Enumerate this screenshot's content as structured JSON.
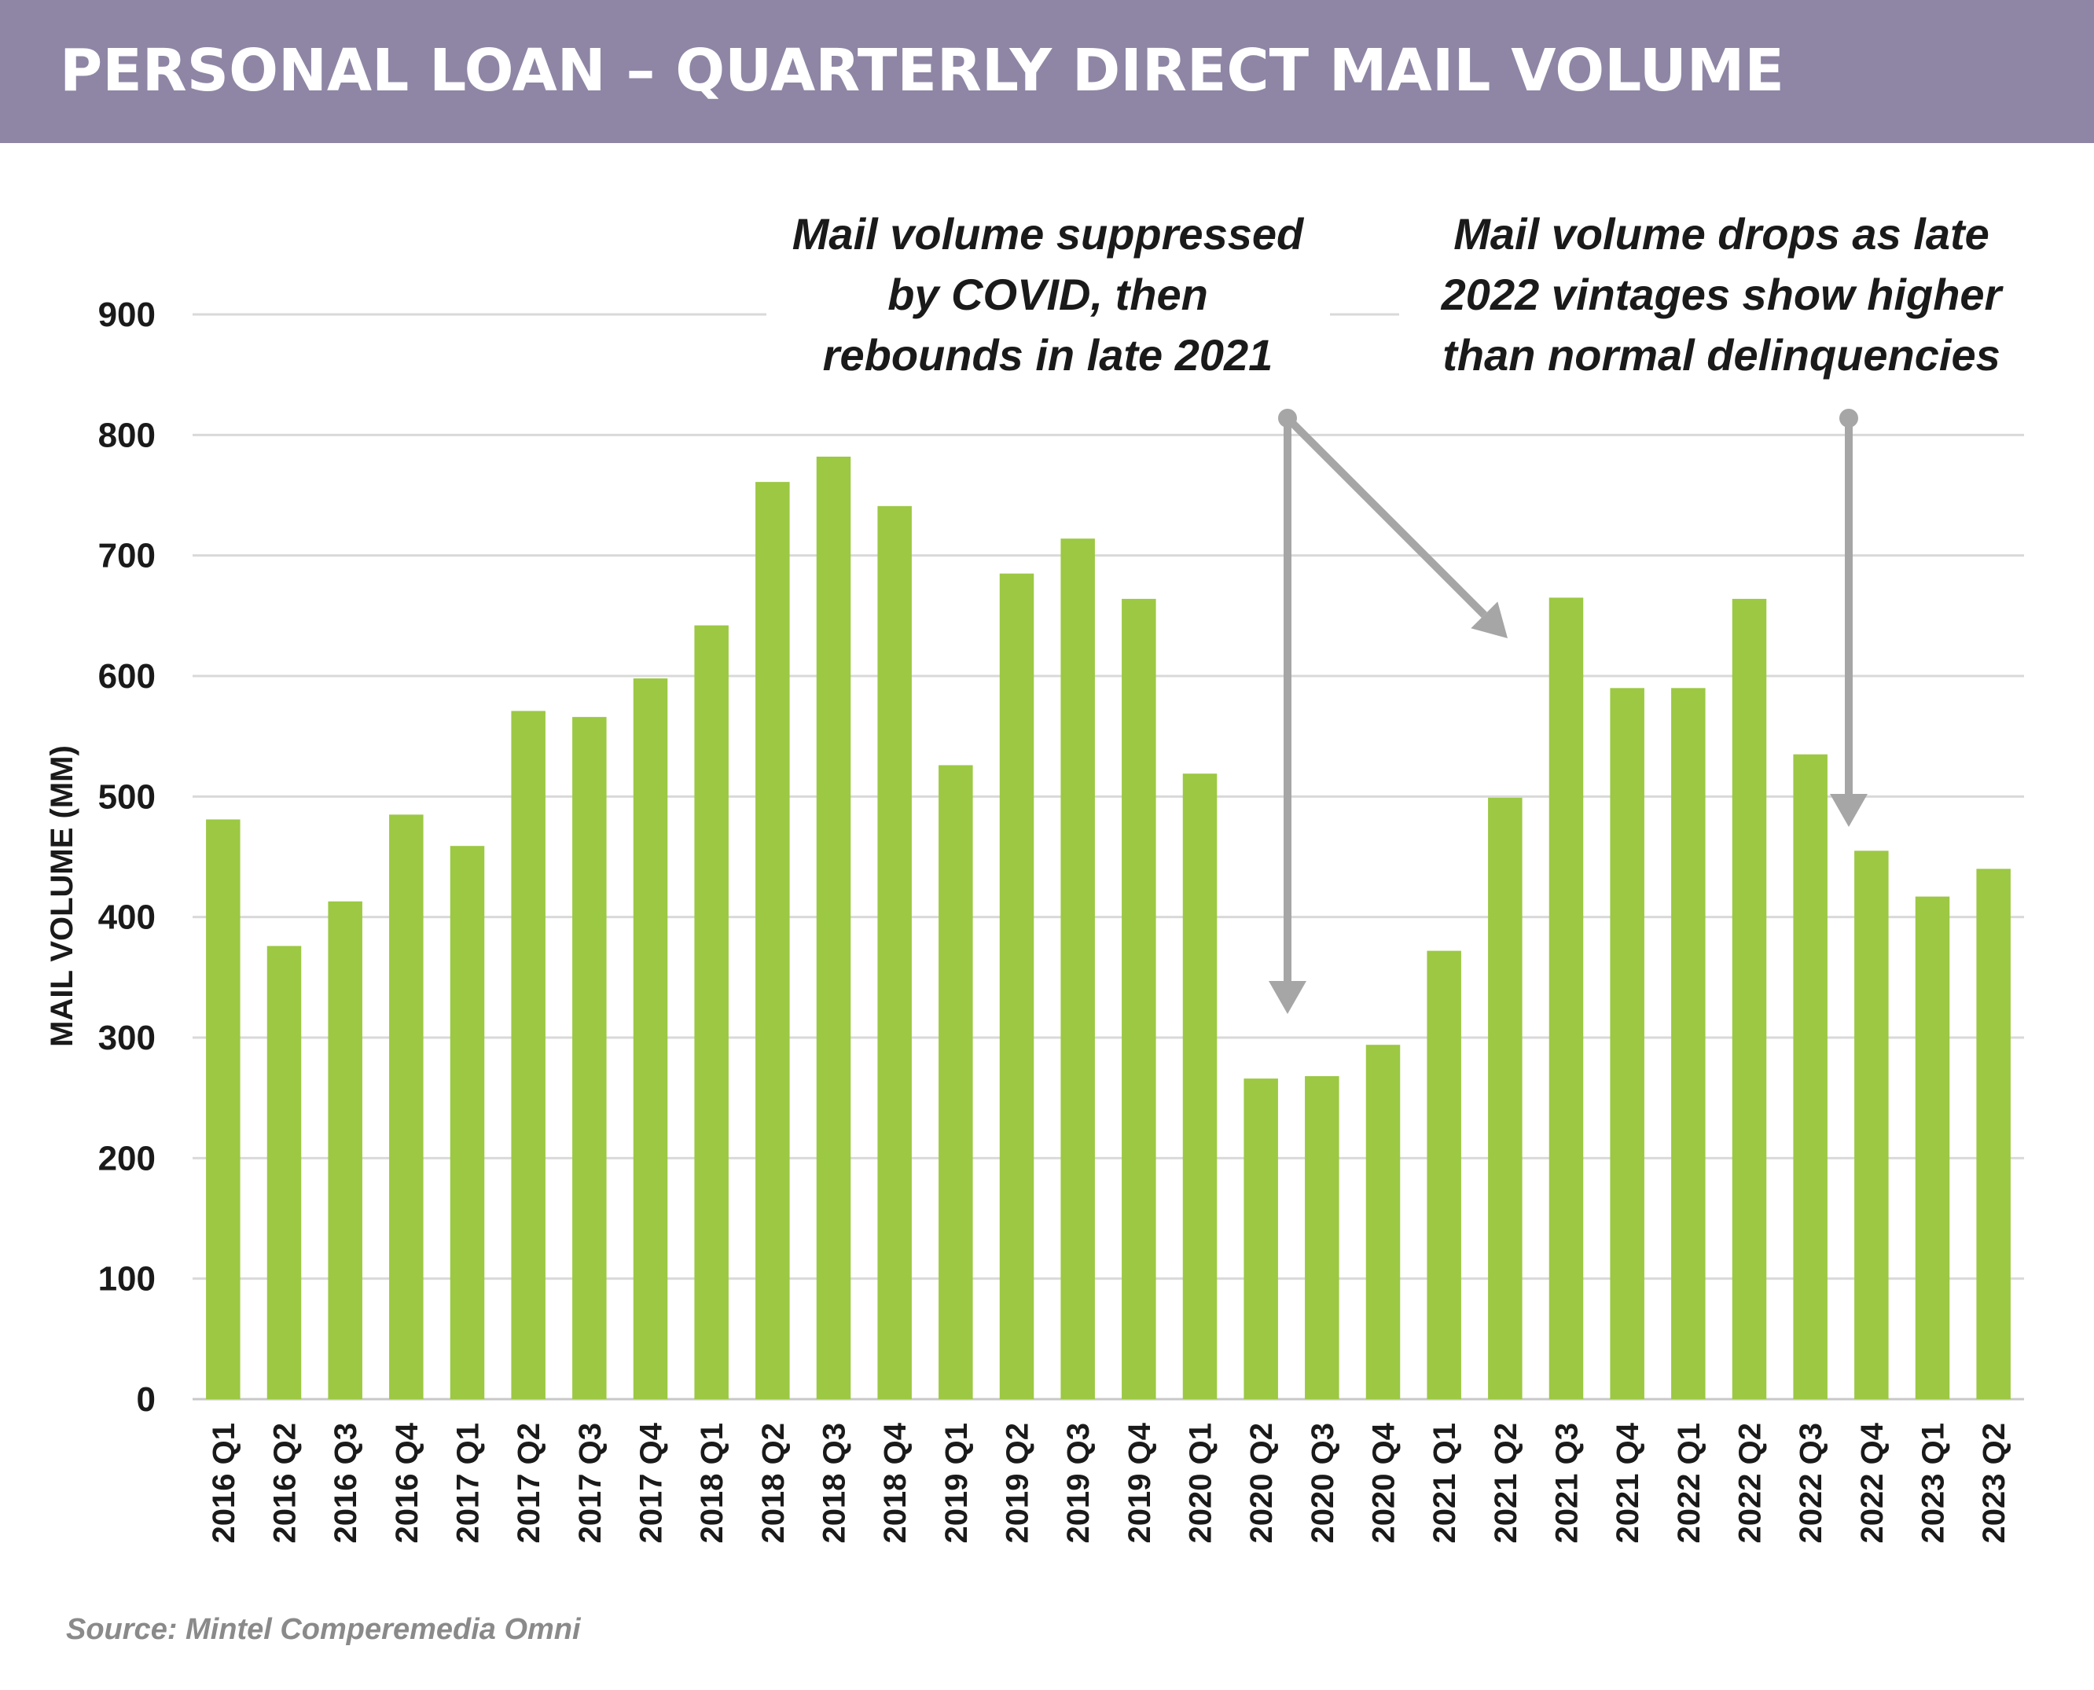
{
  "title": "PERSONAL LOAN – QUARTERLY DIRECT MAIL VOLUME",
  "source": "Source: Mintel Comperemedia Omni",
  "colors": {
    "bar": "#9cc843",
    "title_bg": "#8f86a5",
    "grid": "#d9d9d9",
    "arrow": "#a6a6a6",
    "text": "#1a1a1a"
  },
  "annotations": [
    {
      "lines": [
        "Mail volume suppressed",
        "by COVID, then",
        "rebounds in late 2021"
      ]
    },
    {
      "lines": [
        "Mail volume drops as late",
        "2022 vintages show higher",
        "than normal delinquencies"
      ]
    }
  ],
  "chart_data": {
    "type": "bar",
    "title": "PERSONAL LOAN – QUARTERLY DIRECT MAIL VOLUME",
    "xlabel": "",
    "ylabel": "MAIL VOLUME (MM)",
    "ylim": [
      0,
      900
    ],
    "yticks": [
      0,
      100,
      200,
      300,
      400,
      500,
      600,
      700,
      800,
      900
    ],
    "grid": true,
    "categories": [
      "2016 Q1",
      "2016 Q2",
      "2016 Q3",
      "2016 Q4",
      "2017 Q1",
      "2017 Q2",
      "2017 Q3",
      "2017 Q4",
      "2018 Q1",
      "2018 Q2",
      "2018 Q3",
      "2018 Q4",
      "2019 Q1",
      "2019 Q2",
      "2019 Q3",
      "2019 Q4",
      "2020 Q1",
      "2020 Q2",
      "2020 Q3",
      "2020 Q4",
      "2021 Q1",
      "2021 Q2",
      "2021 Q3",
      "2021 Q4",
      "2022 Q1",
      "2022 Q2",
      "2022 Q3",
      "2022 Q4",
      "2023 Q1",
      "2023 Q2"
    ],
    "values": [
      481,
      376,
      413,
      485,
      459,
      571,
      566,
      598,
      642,
      761,
      782,
      741,
      526,
      685,
      714,
      664,
      519,
      266,
      268,
      294,
      372,
      499,
      665,
      590,
      590,
      664,
      535,
      455,
      417,
      440
    ]
  }
}
